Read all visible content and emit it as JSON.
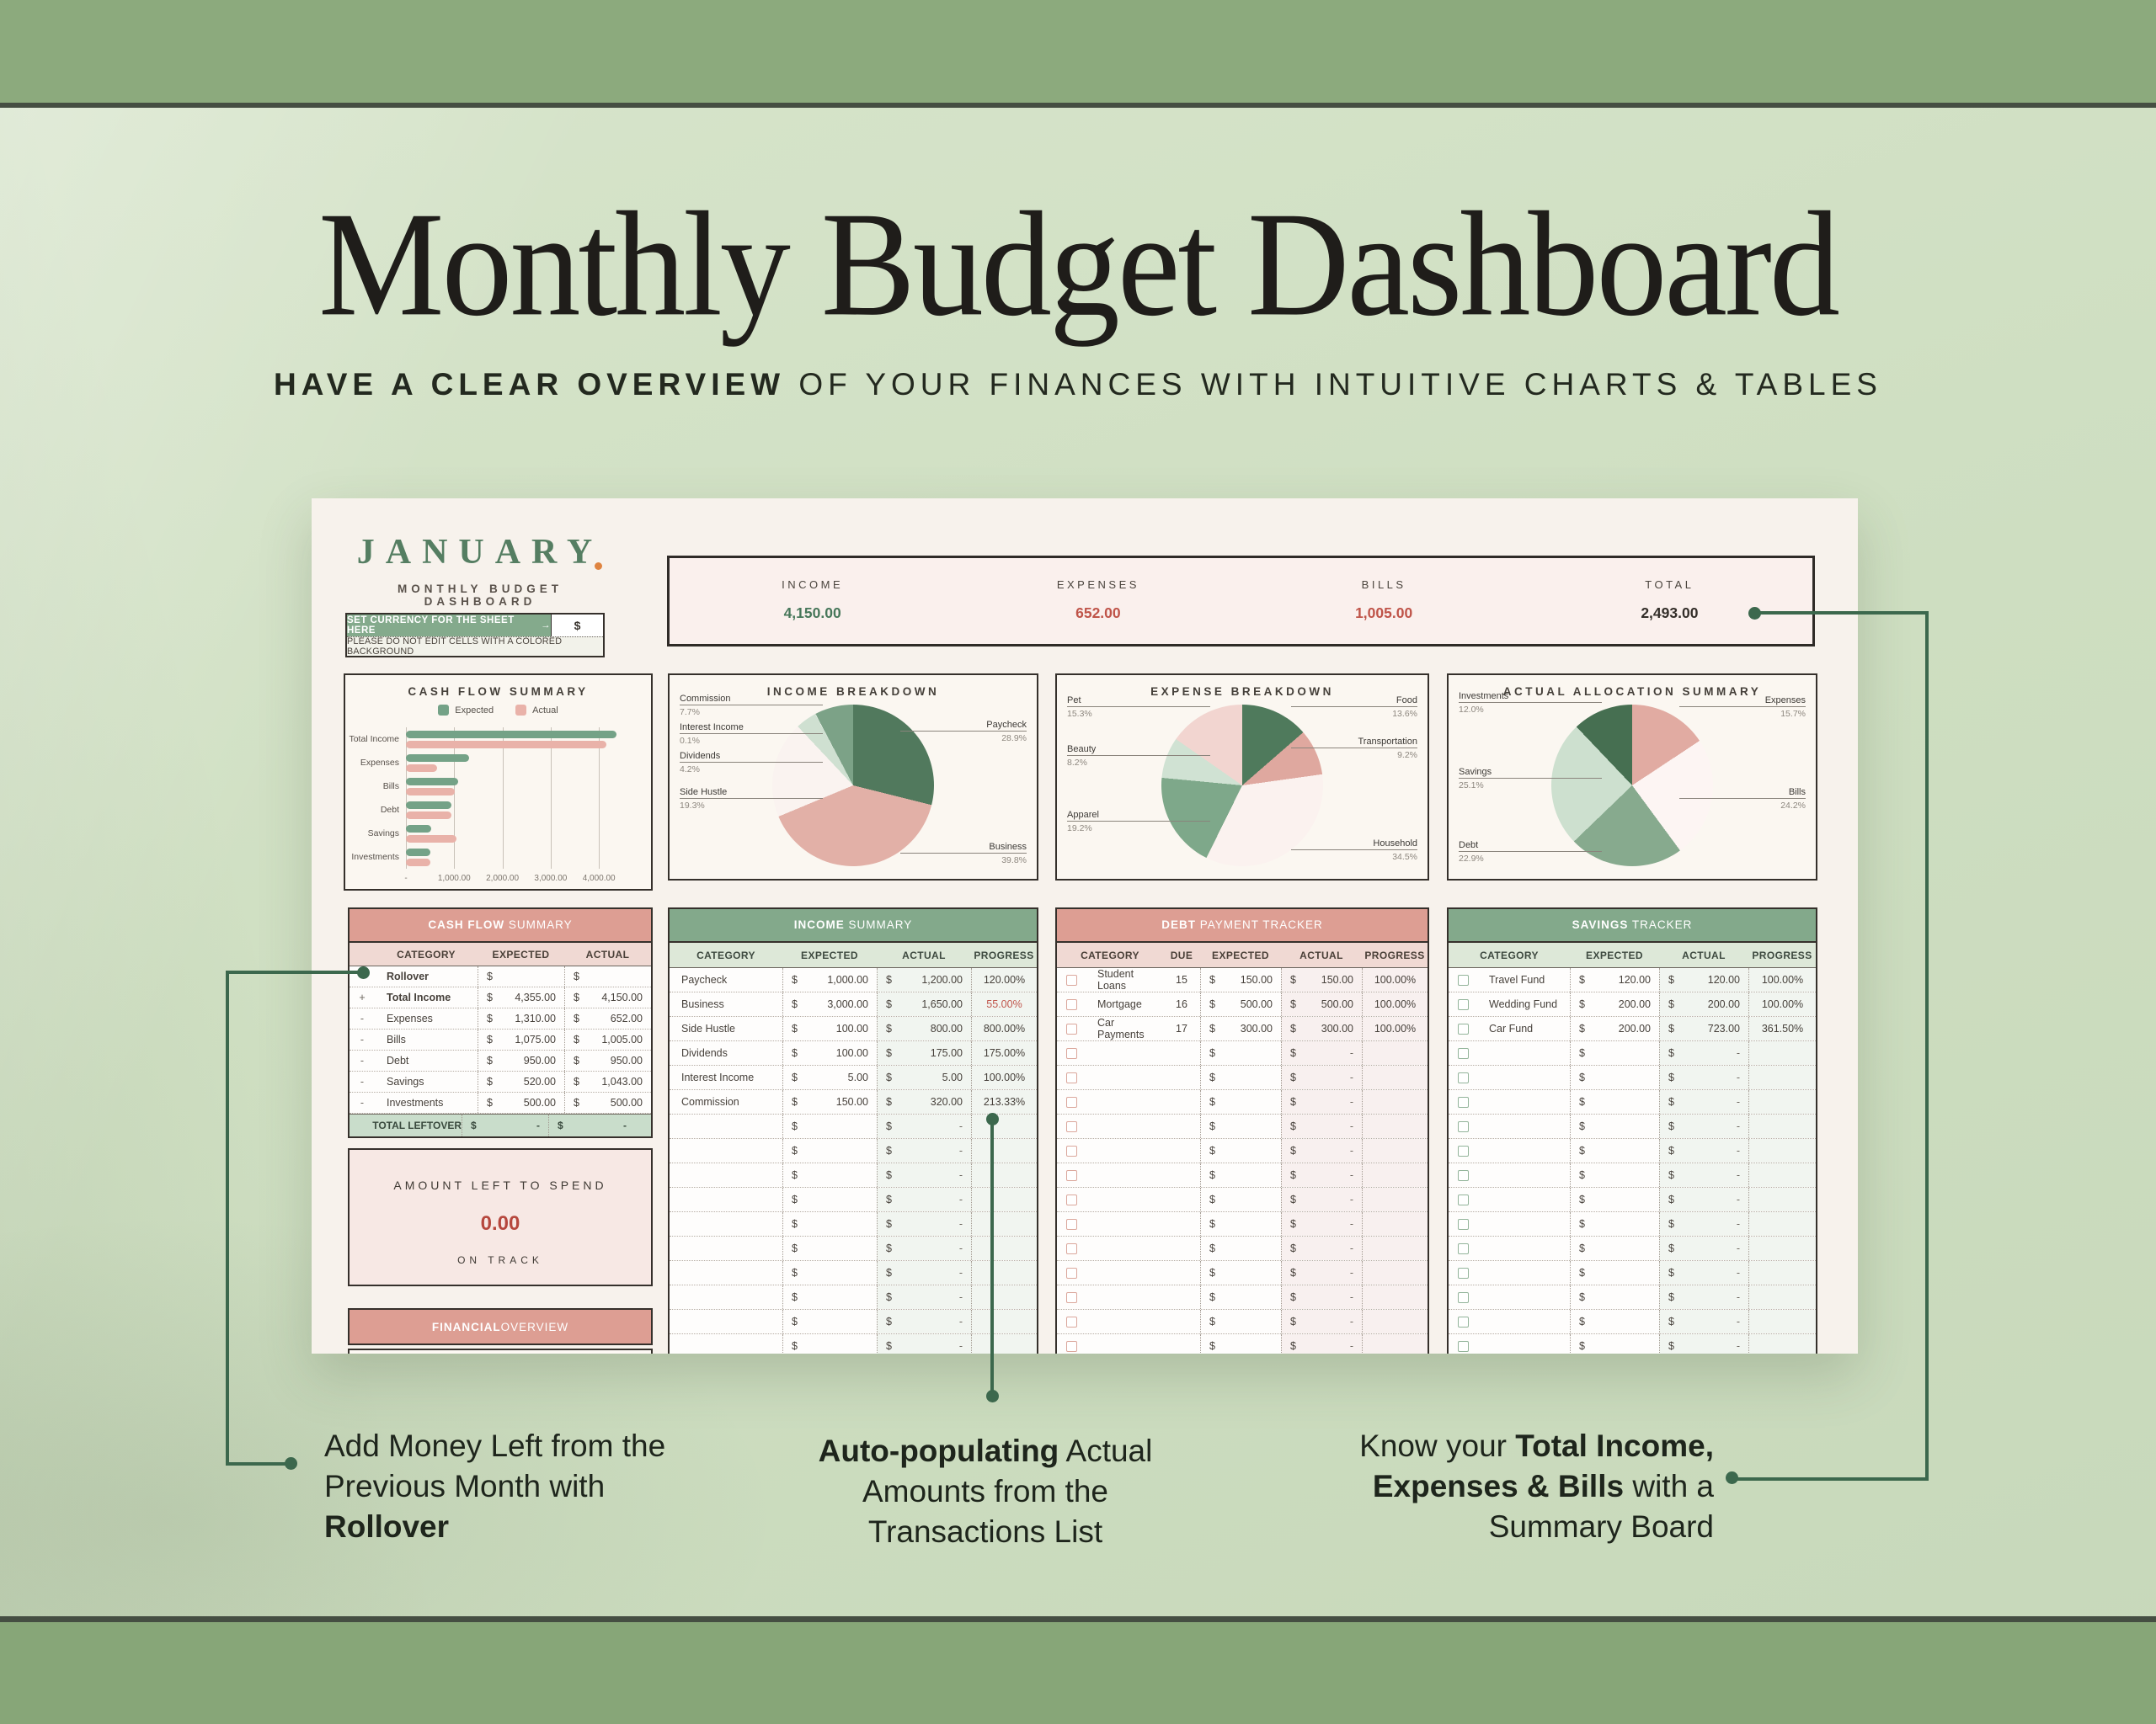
{
  "symbols": {
    "dollar": "$",
    "dash": "-"
  },
  "page": {
    "title": "Monthly Budget Dashboard",
    "subtitle_bold": "HAVE A CLEAR OVERVIEW",
    "subtitle_rest": " OF YOUR FINANCES WITH INTUITIVE CHARTS & TABLES"
  },
  "dashboard": {
    "month": "JANUARY",
    "tagline": "MONTHLY BUDGET DASHBOARD",
    "currency": {
      "label": "SET CURRENCY FOR THE SHEET HERE",
      "arrow": "→",
      "value": "$"
    },
    "warning": "PLEASE DO NOT EDIT CELLS WITH A COLORED BACKGROUND",
    "summary_board": {
      "items": [
        {
          "label": "INCOME",
          "value": "4,150.00",
          "color": "#47775a"
        },
        {
          "label": "EXPENSES",
          "value": "652.00",
          "color": "#bf5449"
        },
        {
          "label": "BILLS",
          "value": "1,005.00",
          "color": "#bf5449"
        },
        {
          "label": "TOTAL",
          "value": "2,493.00",
          "color": "#332e29"
        }
      ]
    },
    "amount_left": {
      "title": "AMOUNT LEFT TO SPEND",
      "value": "0.00",
      "status": "ON TRACK"
    },
    "financial_overview": {
      "title_bold": "FINANCIAL",
      "title_rest": " OVERVIEW"
    }
  },
  "chart_data": [
    {
      "type": "bar",
      "title": "CASH FLOW SUMMARY",
      "orientation": "horizontal",
      "categories": [
        "Total Income",
        "Expenses",
        "Bills",
        "Debt",
        "Savings",
        "Investments"
      ],
      "series": [
        {
          "name": "Expected",
          "color": "#74a287",
          "values": [
            4355,
            1310,
            1075,
            950,
            520,
            500
          ]
        },
        {
          "name": "Actual",
          "color": "#e9b2a9",
          "values": [
            4150,
            652,
            1005,
            950,
            1043,
            500
          ]
        }
      ],
      "xlim": [
        0,
        4800
      ],
      "xticks": [
        {
          "label": "-",
          "value": 0
        },
        {
          "label": "1,000.00",
          "value": 1000
        },
        {
          "label": "2,000.00",
          "value": 2000
        },
        {
          "label": "3,000.00",
          "value": 3000
        },
        {
          "label": "4,000.00",
          "value": 4000
        }
      ],
      "grid": true,
      "legend_position": "top"
    },
    {
      "type": "pie",
      "title": "INCOME BREAKDOWN",
      "slices": [
        {
          "label": "Paycheck",
          "pct": 28.9,
          "display": "28.9%",
          "color": "#51795d"
        },
        {
          "label": "Business",
          "pct": 39.8,
          "display": "39.8%",
          "color": "#e2b0a7"
        },
        {
          "label": "Side Hustle",
          "pct": 19.3,
          "display": "19.3%",
          "color": "#faf3f0"
        },
        {
          "label": "Dividends",
          "pct": 4.2,
          "display": "4.2%",
          "color": "#cfe0d1"
        },
        {
          "label": "Interest Income",
          "pct": 0.1,
          "display": "0.1%",
          "color": "#e7efe7"
        },
        {
          "label": "Commission",
          "pct": 7.7,
          "display": "7.7%",
          "color": "#7ca287"
        }
      ]
    },
    {
      "type": "pie",
      "title": "EXPENSE BREAKDOWN",
      "slices": [
        {
          "label": "Food",
          "pct": 13.6,
          "display": "13.6%",
          "color": "#4f7a5c"
        },
        {
          "label": "Transportation",
          "pct": 9.2,
          "display": "9.2%",
          "color": "#dfa89f"
        },
        {
          "label": "Household",
          "pct": 34.5,
          "display": "34.5%",
          "color": "#fbf2ef"
        },
        {
          "label": "Apparel",
          "pct": 19.2,
          "display": "19.2%",
          "color": "#7ea88a"
        },
        {
          "label": "Beauty",
          "pct": 8.2,
          "display": "8.2%",
          "color": "#d0e2d3"
        },
        {
          "label": "Pet",
          "pct": 15.3,
          "display": "15.3%",
          "color": "#f2d5d0"
        }
      ]
    },
    {
      "type": "pie",
      "title": "ACTUAL ALLOCATION SUMMARY",
      "slices": [
        {
          "label": "Expenses",
          "pct": 15.7,
          "display": "15.7%",
          "color": "#e1aba2"
        },
        {
          "label": "Bills",
          "pct": 24.2,
          "display": "24.2%",
          "color": "#fdf5f3"
        },
        {
          "label": "Debt",
          "pct": 22.9,
          "display": "22.9%",
          "color": "#87aa8e"
        },
        {
          "label": "Savings",
          "pct": 25.1,
          "display": "25.1%",
          "color": "#cde0cf"
        },
        {
          "label": "Investments",
          "pct": 12.0,
          "display": "12.0%",
          "color": "#466f51"
        }
      ]
    }
  ],
  "tables": {
    "cash_flow": {
      "title_bold": "CASH FLOW",
      "title_rest": " SUMMARY",
      "headers": [
        "CATEGORY",
        "EXPECTED",
        "ACTUAL"
      ],
      "rows": [
        {
          "sign": "",
          "cat": "Rollover",
          "fw": "700",
          "exp": "",
          "act": ""
        },
        {
          "sign": "+",
          "cat": "Total Income",
          "fw": "700",
          "exp": "4,355.00",
          "act": "4,150.00"
        },
        {
          "sign": "-",
          "cat": "Expenses",
          "exp": "1,310.00",
          "act": "652.00"
        },
        {
          "sign": "-",
          "cat": "Bills",
          "exp": "1,075.00",
          "act": "1,005.00"
        },
        {
          "sign": "-",
          "cat": "Debt",
          "exp": "950.00",
          "act": "950.00"
        },
        {
          "sign": "-",
          "cat": "Savings",
          "exp": "520.00",
          "act": "1,043.00"
        },
        {
          "sign": "-",
          "cat": "Investments",
          "exp": "500.00",
          "act": "500.00"
        }
      ],
      "total_row": {
        "label": "TOTAL LEFTOVER",
        "exp": "-",
        "act": "-"
      }
    },
    "income": {
      "title_bold": "INCOME",
      "title_rest": " SUMMARY",
      "headers": [
        "CATEGORY",
        "EXPECTED",
        "ACTUAL",
        "PROGRESS"
      ],
      "rows": [
        {
          "cat": "Paycheck",
          "exp": "1,000.00",
          "act": "1,200.00",
          "prog": "120.00%"
        },
        {
          "cat": "Business",
          "exp": "3,000.00",
          "act": "1,650.00",
          "prog": "55.00%",
          "progColor": "#c0564c"
        },
        {
          "cat": "Side Hustle",
          "exp": "100.00",
          "act": "800.00",
          "prog": "800.00%"
        },
        {
          "cat": "Dividends",
          "exp": "100.00",
          "act": "175.00",
          "prog": "175.00%"
        },
        {
          "cat": "Interest Income",
          "exp": "5.00",
          "act": "5.00",
          "prog": "100.00%"
        },
        {
          "cat": "Commission",
          "exp": "150.00",
          "act": "320.00",
          "prog": "213.33%"
        }
      ],
      "empty_rows": 11
    },
    "debt": {
      "title_bold": "DEBT",
      "title_rest": " PAYMENT TRACKER",
      "headers": [
        "CATEGORY",
        "DUE",
        "EXPECTED",
        "ACTUAL",
        "PROGRESS"
      ],
      "rows": [
        {
          "cat": "Student Loans",
          "due": "15",
          "exp": "150.00",
          "act": "150.00",
          "prog": "100.00%"
        },
        {
          "cat": "Mortgage",
          "due": "16",
          "exp": "500.00",
          "act": "500.00",
          "prog": "100.00%"
        },
        {
          "cat": "Car Payments",
          "due": "17",
          "exp": "300.00",
          "act": "300.00",
          "prog": "100.00%"
        }
      ],
      "empty_rows": 13
    },
    "savings": {
      "title_bold": "SAVINGS",
      "title_rest": " TRACKER",
      "headers": [
        "CATEGORY",
        "EXPECTED",
        "ACTUAL",
        "PROGRESS"
      ],
      "rows": [
        {
          "cat": "Travel Fund",
          "exp": "120.00",
          "act": "120.00",
          "prog": "100.00%"
        },
        {
          "cat": "Wedding Fund",
          "exp": "200.00",
          "act": "200.00",
          "prog": "100.00%"
        },
        {
          "cat": "Car Fund",
          "exp": "200.00",
          "act": "723.00",
          "prog": "361.50%"
        }
      ],
      "empty_rows": 13
    }
  },
  "annotations": {
    "left": {
      "segments": [
        {
          "t": "Add Money Left from the Previous Month with ",
          "w": "400"
        },
        {
          "t": "Rollover",
          "w": "700"
        }
      ]
    },
    "middle": {
      "segments": [
        {
          "t": "Auto-populating",
          "w": "700"
        },
        {
          "t": " Actual Amounts from the Transactions List",
          "w": "400"
        }
      ]
    },
    "right": {
      "segments": [
        {
          "t": "Know your ",
          "w": "400"
        },
        {
          "t": "Total Income, Expenses & Bills",
          "w": "700"
        },
        {
          "t": " with a Summary Board",
          "w": "400"
        }
      ]
    }
  }
}
